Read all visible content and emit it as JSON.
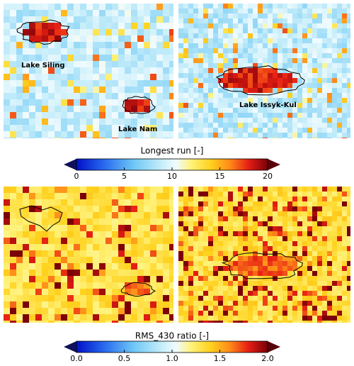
{
  "panels": [
    {
      "labels": [
        "Lake Siling",
        "Lake Nam"
      ]
    },
    {
      "labels": [
        "Lake Issyk-Kul"
      ]
    }
  ],
  "colorbars": [
    {
      "title": "Longest run  [-]",
      "lim": [
        0,
        20
      ],
      "ticks": [
        0,
        5,
        10,
        15,
        20
      ]
    },
    {
      "title": "RMS_430 ratio  [-]",
      "lim": [
        0,
        2
      ],
      "ticks": [
        {
          "value": 0,
          "label": "0.0"
        },
        {
          "value": 0.5,
          "label": "0.5"
        },
        {
          "value": 1,
          "label": "1.0"
        },
        {
          "value": 1.5,
          "label": "1.5"
        },
        {
          "value": 2,
          "label": "2.0"
        }
      ]
    }
  ]
}
